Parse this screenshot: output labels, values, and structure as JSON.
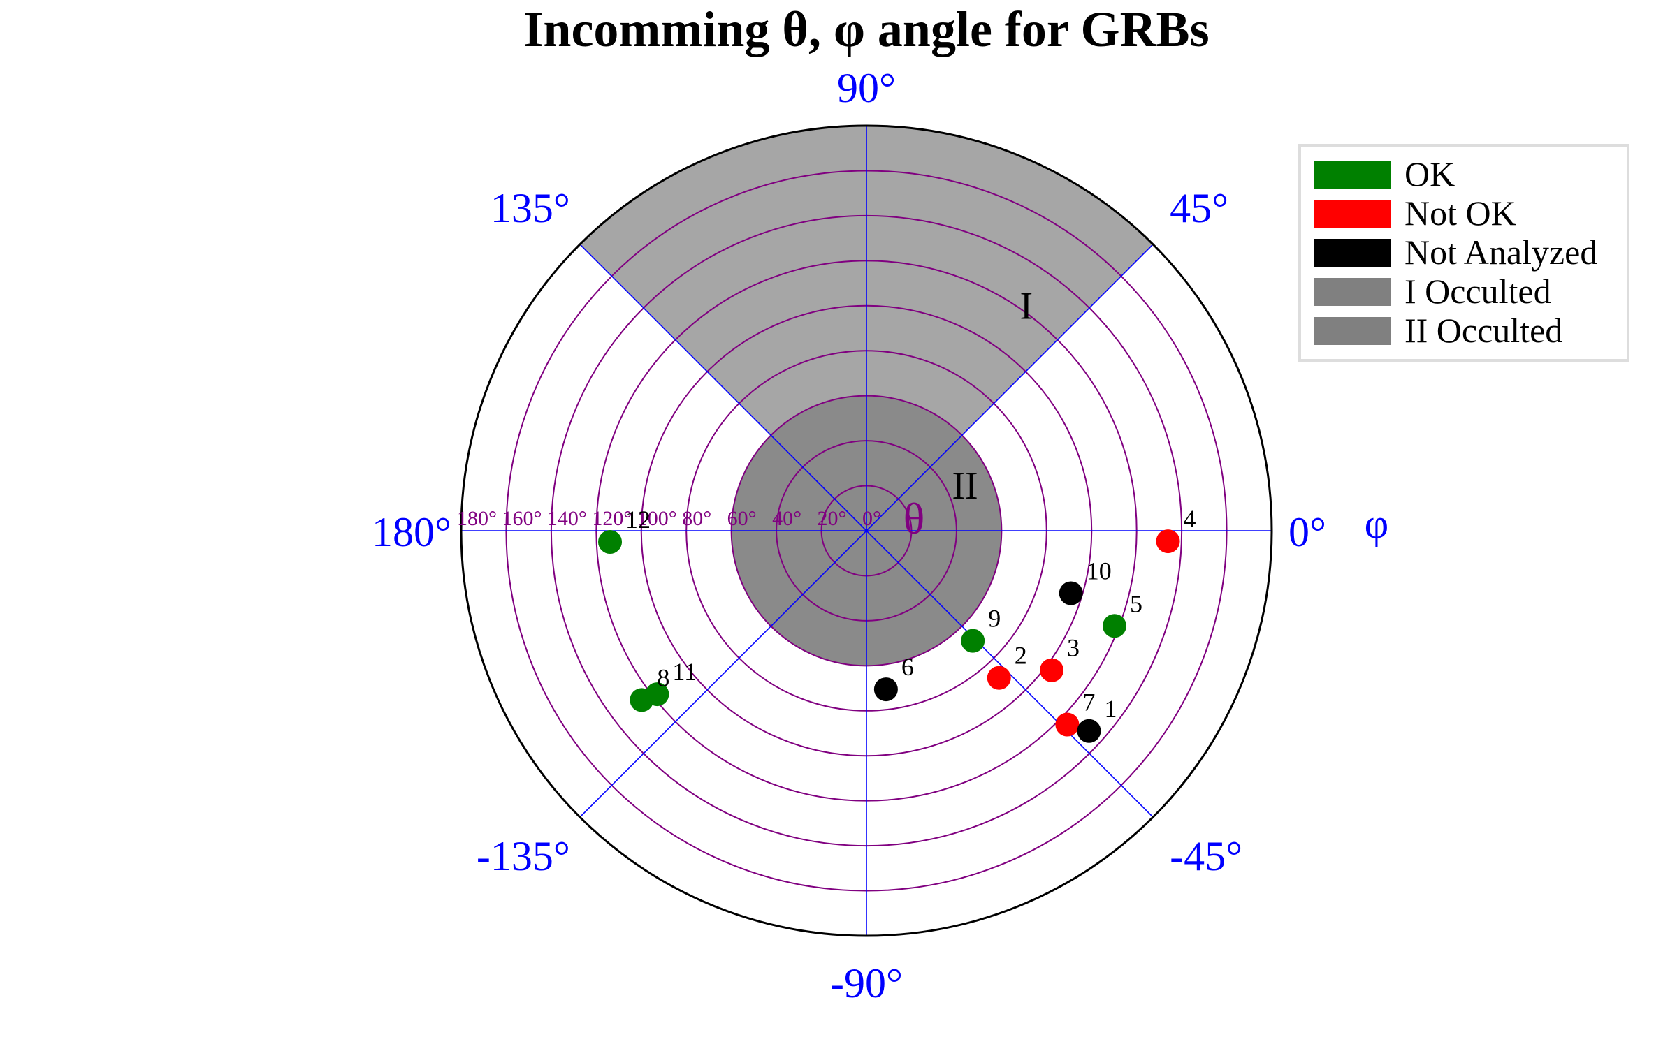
{
  "chart_data": {
    "type": "scatter",
    "projection": "polar",
    "title": "Incomming θ, φ angle for GRBs",
    "phi_axis_label": "φ",
    "theta_axis_label": "θ",
    "theta_range": [
      0,
      180
    ],
    "theta_ticks": [
      {
        "value": 0,
        "label": "0°"
      },
      {
        "value": 20,
        "label": "20°"
      },
      {
        "value": 40,
        "label": "40°"
      },
      {
        "value": 60,
        "label": "60°"
      },
      {
        "value": 80,
        "label": "80°"
      },
      {
        "value": 100,
        "label": "100°"
      },
      {
        "value": 120,
        "label": "120°"
      },
      {
        "value": 140,
        "label": "140°"
      },
      {
        "value": 160,
        "label": "160°"
      },
      {
        "value": 180,
        "label": "180°"
      }
    ],
    "phi_ticks": [
      {
        "value": 0,
        "label": "0°"
      },
      {
        "value": 45,
        "label": "45°"
      },
      {
        "value": 90,
        "label": "90°"
      },
      {
        "value": 135,
        "label": "135°"
      },
      {
        "value": 180,
        "label": "180°"
      },
      {
        "value": -135,
        "label": "-135°"
      },
      {
        "value": -90,
        "label": "-90°"
      },
      {
        "value": -45,
        "label": "-45°"
      }
    ],
    "grid": true,
    "regions": [
      {
        "name": "I Occulted",
        "label": "I",
        "phi_range": [
          45,
          135
        ],
        "theta_range": [
          60,
          180
        ],
        "color": "#a6a6a6",
        "label_theta": 118,
        "label_phi": 53
      },
      {
        "name": "II Occulted",
        "label": "II",
        "phi_range": [
          -180,
          180
        ],
        "theta_range": [
          0,
          60
        ],
        "color": "#8a8a8a",
        "label_theta": 46,
        "label_phi": 18
      }
    ],
    "series": [
      {
        "name": "OK",
        "color": "#008000",
        "points": [
          {
            "id": "5",
            "theta": 118,
            "phi": -21
          },
          {
            "id": "9",
            "theta": 68,
            "phi": -46
          },
          {
            "id": "8",
            "theta": 125,
            "phi": -143
          },
          {
            "id": "11",
            "theta": 118,
            "phi": -142
          },
          {
            "id": "12",
            "theta": 114,
            "phi": -177.5
          }
        ]
      },
      {
        "name": "Not OK",
        "color": "#ff0000",
        "points": [
          {
            "id": "4",
            "theta": 134,
            "phi": -2
          },
          {
            "id": "3",
            "theta": 103,
            "phi": -37
          },
          {
            "id": "2",
            "theta": 88,
            "phi": -48
          },
          {
            "id": "7",
            "theta": 124,
            "phi": -44
          }
        ]
      },
      {
        "name": "Not Analyzed",
        "color": "#000000",
        "points": [
          {
            "id": "10",
            "theta": 95,
            "phi": -17
          },
          {
            "id": "6",
            "theta": 71,
            "phi": -83
          },
          {
            "id": "1",
            "theta": 133,
            "phi": -42
          }
        ]
      }
    ],
    "legend": {
      "position": "top-right",
      "entries": [
        {
          "label": "OK",
          "color": "#008000"
        },
        {
          "label": "Not OK",
          "color": "#ff0000"
        },
        {
          "label": "Not Analyzed",
          "color": "#000000"
        },
        {
          "label": "I Occulted",
          "color": "#808080"
        },
        {
          "label": "II Occulted",
          "color": "#808080"
        }
      ]
    },
    "colors": {
      "phi_grid": "#0000ff",
      "theta_grid": "#800080",
      "outer_circle": "#000000"
    }
  }
}
